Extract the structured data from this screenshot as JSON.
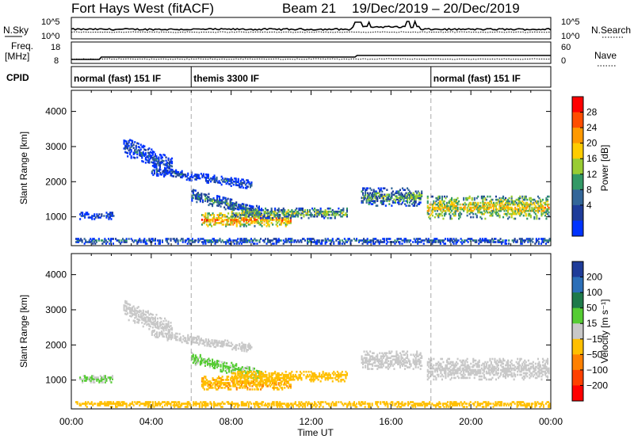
{
  "header": {
    "title": "Fort Hays West (fitACF)",
    "beam": "Beam 21",
    "dates": "19/Dec/2019 – 20/Dec/2019"
  },
  "top_panels": {
    "nsky_label": "N.Sky",
    "nsearch_label": "N.Search",
    "nsky_ticks": [
      "10^5",
      "10^0"
    ],
    "nsearch_ticks": [
      "10^5",
      "10^0"
    ],
    "freq_label": "Freq.",
    "freq_unit": "[MHz]",
    "freq_ticks": [
      "18",
      "8"
    ],
    "nave_label": "Nave",
    "nave_ticks": [
      "60",
      "0"
    ],
    "cpid_label": "CPID",
    "cpid_segments": [
      {
        "label": "normal (fast) 151 IF",
        "start": 0,
        "end": 6
      },
      {
        "label": "themis 3300 IF",
        "start": 6,
        "end": 18
      },
      {
        "label": "normal (fast) 151 IF",
        "start": 18,
        "end": 24
      }
    ]
  },
  "power_colorbar": {
    "label": "Power [dB]",
    "ticks": [
      "28",
      "24",
      "20",
      "16",
      "12",
      "8",
      "4"
    ],
    "colors": [
      "#ff0000",
      "#ff4d00",
      "#ff9900",
      "#ffcc00",
      "#99cc33",
      "#339966",
      "#336699",
      "#1e3c9a",
      "#0033ff"
    ]
  },
  "velocity_colorbar": {
    "label": "Velocity [m s⁻¹]",
    "ticks": [
      "200",
      "100",
      "50",
      "15",
      "−15",
      "−50",
      "−100",
      "−200"
    ],
    "colors": [
      "#1f3c99",
      "#2c6fb8",
      "#1e7a4a",
      "#55cc33",
      "#c8c8c8",
      "#ffbf00",
      "#ff8000",
      "#ff4000",
      "#ff0000"
    ]
  },
  "axes": {
    "ylabel": "Slant Range [km]",
    "xlabel": "Time UT",
    "y_ticks": [
      "4000",
      "3000",
      "2000",
      "1000"
    ],
    "x_ticks": [
      "00:00",
      "04:00",
      "08:00",
      "12:00",
      "16:00",
      "20:00",
      "00:00"
    ]
  },
  "chart_data": [
    {
      "type": "heatmap",
      "title": "Power",
      "xlabel": "Time UT",
      "ylabel": "Slant Range [km]",
      "xlim_hours": [
        0,
        24
      ],
      "ylim_km": [
        180,
        4600
      ],
      "colorbar_label": "Power [dB]",
      "colorbar_range": [
        0,
        30
      ],
      "echo_regions": [
        {
          "t_start": 0.4,
          "t_end": 2.1,
          "r_center": 1020,
          "r_half": 100,
          "value": 5
        },
        {
          "t_start": 2.6,
          "t_end": 5.0,
          "r_center": 3000,
          "r_half": 250,
          "value": 6,
          "r_end": 2400
        },
        {
          "t_start": 4.0,
          "t_end": 9.0,
          "r_center": 2300,
          "r_half": 120,
          "value": 6,
          "r_end": 1900
        },
        {
          "t_start": 6.0,
          "t_end": 9.5,
          "r_center": 1600,
          "r_half": 160,
          "value": 10,
          "r_end": 1100
        },
        {
          "t_start": 6.5,
          "t_end": 11.0,
          "r_center": 900,
          "r_half": 180,
          "value": 22
        },
        {
          "t_start": 8.0,
          "t_end": 13.8,
          "r_center": 1100,
          "r_half": 150,
          "value": 14
        },
        {
          "t_start": 14.5,
          "t_end": 17.5,
          "r_center": 1550,
          "r_half": 250,
          "value": 12
        },
        {
          "t_start": 17.8,
          "t_end": 23.9,
          "r_center": 1250,
          "r_half": 320,
          "value": 18
        },
        {
          "t_start": 0.2,
          "t_end": 23.9,
          "r_center": 300,
          "r_half": 80,
          "value": 8
        }
      ]
    },
    {
      "type": "heatmap",
      "title": "Velocity",
      "xlabel": "Time UT",
      "ylabel": "Slant Range [km]",
      "xlim_hours": [
        0,
        24
      ],
      "ylim_km": [
        180,
        4600
      ],
      "colorbar_label": "Velocity [m s-1]",
      "colorbar_range": [
        -200,
        200
      ],
      "echo_regions": [
        {
          "t_start": 0.4,
          "t_end": 2.1,
          "r_center": 1020,
          "r_half": 100,
          "value": 20
        },
        {
          "t_start": 2.6,
          "t_end": 5.0,
          "r_center": 3000,
          "r_half": 250,
          "value": 0,
          "r_end": 2400
        },
        {
          "t_start": 4.0,
          "t_end": 9.0,
          "r_center": 2300,
          "r_half": 120,
          "value": 0,
          "r_end": 1900
        },
        {
          "t_start": 6.0,
          "t_end": 9.5,
          "r_center": 1600,
          "r_half": 160,
          "value": 25,
          "r_end": 1100
        },
        {
          "t_start": 6.5,
          "t_end": 11.0,
          "r_center": 900,
          "r_half": 180,
          "value": -40
        },
        {
          "t_start": 8.0,
          "t_end": 13.8,
          "r_center": 1100,
          "r_half": 150,
          "value": -30
        },
        {
          "t_start": 14.5,
          "t_end": 17.5,
          "r_center": 1550,
          "r_half": 250,
          "value": 0
        },
        {
          "t_start": 17.8,
          "t_end": 23.9,
          "r_center": 1300,
          "r_half": 300,
          "value": 0
        },
        {
          "t_start": 0.2,
          "t_end": 23.9,
          "r_center": 300,
          "r_half": 80,
          "value": -30
        }
      ]
    }
  ]
}
